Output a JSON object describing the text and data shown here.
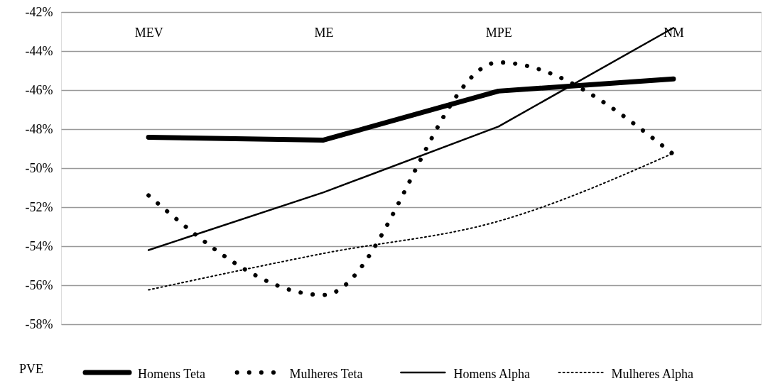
{
  "chart_data": {
    "type": "line",
    "categories": [
      "MEV",
      "ME",
      "MPE",
      "NM"
    ],
    "series": [
      {
        "name": "Homens Teta",
        "color": "#000000",
        "line_style": "solid",
        "values": [
          -48.42,
          -48.56,
          -46.05,
          -45.43
        ]
      },
      {
        "name": "Mulheres Teta",
        "color": "#000000",
        "line_style": "dotted",
        "values": [
          -51.4,
          -56.5,
          -44.58,
          -49.29
        ]
      },
      {
        "name": "Homens Alpha",
        "color": "#000000",
        "line_style": "solid",
        "values": [
          -54.2,
          -51.24,
          -47.87,
          -42.81
        ]
      },
      {
        "name": "Mulheres Alpha",
        "color": "#000000",
        "line_style": "dotted",
        "values": [
          -56.24,
          -54.37,
          -52.72,
          -49.23
        ]
      }
    ],
    "ylim": [
      -58,
      -42
    ],
    "yticks": [
      {
        "value": -42,
        "label": "-42%"
      },
      {
        "value": -44,
        "label": "-44%"
      },
      {
        "value": -46,
        "label": "-46%"
      },
      {
        "value": -48,
        "label": "-48%"
      },
      {
        "value": -50,
        "label": "-50%"
      },
      {
        "value": -52,
        "label": "-52%"
      },
      {
        "value": -54,
        "label": "-54%"
      },
      {
        "value": -56,
        "label": "-56%"
      },
      {
        "value": -58,
        "label": "-58%"
      }
    ],
    "grid": "y",
    "legend": "bottom",
    "annotations": [
      "PVE"
    ]
  }
}
